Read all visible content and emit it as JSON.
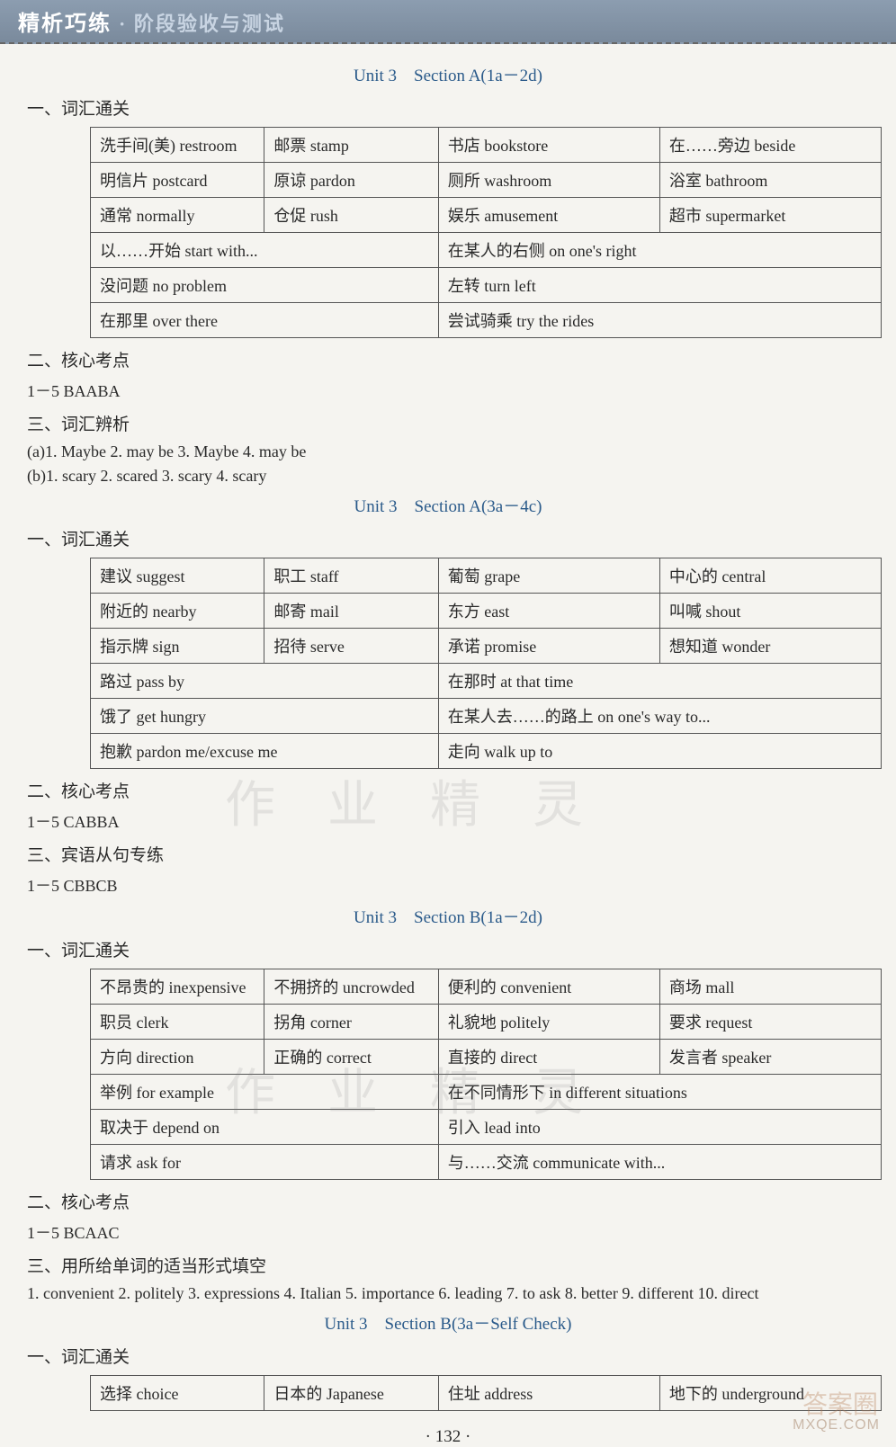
{
  "header": {
    "main": "精析巧练",
    "sub": "· 阶段验收与测试"
  },
  "sections": [
    {
      "title": "Unit 3　Section A(1a－2d)",
      "blocks": [
        {
          "heading": "一、词汇通关",
          "table": [
            [
              "洗手间(美) restroom",
              "邮票 stamp",
              "书店 bookstore",
              "在……旁边 beside"
            ],
            [
              "明信片 postcard",
              "原谅 pardon",
              "厕所 washroom",
              "浴室 bathroom"
            ],
            [
              "通常 normally",
              "仓促 rush",
              "娱乐 amusement",
              "超市 supermarket"
            ],
            [
              "以……开始 start with...",
              "",
              "在某人的右侧 on one's right",
              ""
            ],
            [
              "没问题 no problem",
              "",
              "左转 turn left",
              ""
            ],
            [
              "在那里 over there",
              "",
              "尝试骑乘 try the rides",
              ""
            ]
          ],
          "merge_last3": true
        },
        {
          "heading": "二、核心考点",
          "lines": [
            "1－5 BAABA"
          ]
        },
        {
          "heading": "三、词汇辨析",
          "lines": [
            "(a)1. Maybe 2. may be 3. Maybe 4. may be",
            "(b)1. scary 2. scared 3. scary 4. scary"
          ]
        }
      ]
    },
    {
      "title": "Unit 3　Section A(3a－4c)",
      "blocks": [
        {
          "heading": "一、词汇通关",
          "table": [
            [
              "建议 suggest",
              "职工 staff",
              "葡萄 grape",
              "中心的 central"
            ],
            [
              "附近的 nearby",
              "邮寄 mail",
              "东方 east",
              "叫喊 shout"
            ],
            [
              "指示牌 sign",
              "招待 serve",
              "承诺 promise",
              "想知道 wonder"
            ],
            [
              "路过 pass by",
              "",
              "在那时 at that time",
              ""
            ],
            [
              "饿了 get hungry",
              "",
              "在某人去……的路上 on one's way to...",
              ""
            ],
            [
              "抱歉 pardon me/excuse me",
              "",
              "走向 walk up to",
              ""
            ]
          ],
          "merge_last3": true
        },
        {
          "heading": "二、核心考点",
          "lines": [
            "1－5 CABBA"
          ]
        },
        {
          "heading": "三、宾语从句专练",
          "lines": [
            "1－5 CBBCB"
          ]
        }
      ]
    },
    {
      "title": "Unit 3　Section B(1a－2d)",
      "blocks": [
        {
          "heading": "一、词汇通关",
          "table": [
            [
              "不昂贵的 inexpensive",
              "不拥挤的 uncrowded",
              "便利的 convenient",
              "商场 mall"
            ],
            [
              "职员 clerk",
              "拐角 corner",
              "礼貌地 politely",
              "要求 request"
            ],
            [
              "方向 direction",
              "正确的 correct",
              "直接的 direct",
              "发言者 speaker"
            ],
            [
              "举例 for example",
              "",
              "在不同情形下 in different situations",
              ""
            ],
            [
              "取决于 depend on",
              "",
              "引入 lead into",
              ""
            ],
            [
              "请求 ask for",
              "",
              "与……交流 communicate with...",
              ""
            ]
          ],
          "merge_last3": true
        },
        {
          "heading": "二、核心考点",
          "lines": [
            "1－5 BCAAC"
          ]
        },
        {
          "heading": "三、用所给单词的适当形式填空",
          "lines": [
            "1. convenient 2. politely 3. expressions 4. Italian 5. importance 6. leading 7. to ask 8. better 9. different 10. direct"
          ]
        }
      ]
    },
    {
      "title": "Unit 3　Section B(3a－Self Check)",
      "blocks": [
        {
          "heading": "一、词汇通关",
          "table": [
            [
              "选择 choice",
              "日本的 Japanese",
              "住址 address",
              "地下的 underground"
            ]
          ],
          "merge_last3": false
        }
      ]
    }
  ],
  "page_number": "· 132 ·",
  "watermark_text": "作 业 精 灵",
  "footer_brand": "答案圈",
  "footer_url": "MXQE.COM"
}
